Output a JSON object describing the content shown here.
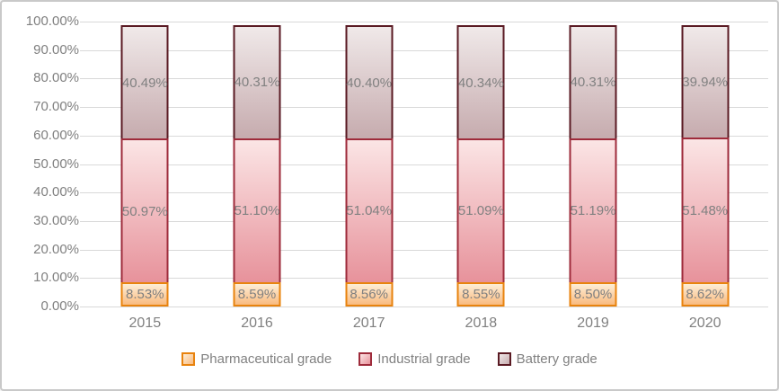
{
  "chart": {
    "background": "#FFFFFF",
    "border_color": "#C9C9C9",
    "gridline_color": "#D9D9D9",
    "axis_text_color": "#808080",
    "data_label_color": "#808080"
  },
  "chart_data": {
    "type": "bar",
    "stacked": true,
    "orientation": "vertical",
    "title": "",
    "categories": [
      "2015",
      "2016",
      "2017",
      "2018",
      "2019",
      "2020"
    ],
    "series": [
      {
        "name": "Pharmaceutical grade",
        "values": [
          8.53,
          8.59,
          8.56,
          8.55,
          8.5,
          8.62
        ],
        "data_labels": [
          "8.53%",
          "8.59%",
          "8.56%",
          "8.55%",
          "8.50%",
          "8.62%"
        ],
        "border_color": "#E8830E",
        "fill_top": "#FDEDD6",
        "fill_bottom": "#F9BB80"
      },
      {
        "name": "Industrial grade",
        "values": [
          50.97,
          51.1,
          51.04,
          51.09,
          51.19,
          51.48
        ],
        "data_labels": [
          "50.97%",
          "51.10%",
          "51.04%",
          "51.09%",
          "51.19%",
          "51.48%"
        ],
        "border_color": "#9E2B3B",
        "fill_top": "#FBE5E5",
        "fill_bottom": "#E7929B"
      },
      {
        "name": "Battery grade",
        "values": [
          40.49,
          40.31,
          40.4,
          40.34,
          40.31,
          39.94
        ],
        "data_labels": [
          "40.49%",
          "40.31%",
          "40.40%",
          "40.34%",
          "40.31%",
          "39.94%"
        ],
        "border_color": "#5A1A23",
        "fill_top": "#F0E9E9",
        "fill_bottom": "#C6ABAE"
      }
    ],
    "y_axis": {
      "min": 0,
      "max": 100,
      "step": 10,
      "tick_labels": [
        "100.00%",
        "90.00%",
        "80.00%",
        "70.00%",
        "60.00%",
        "50.00%",
        "40.00%",
        "30.00%",
        "20.00%",
        "10.00%",
        "0.00%"
      ]
    },
    "legend": {
      "position": "bottom",
      "items": [
        "Pharmaceutical grade",
        "Industrial grade",
        "Battery grade"
      ]
    },
    "grid": true
  }
}
